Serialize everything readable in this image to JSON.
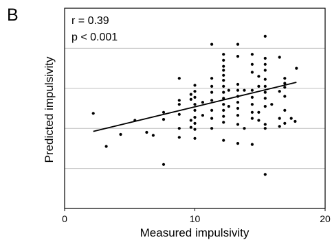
{
  "chart_data": {
    "type": "scatter",
    "panel_label": "B",
    "title": "",
    "xlabel": "Measured impulsivity",
    "ylabel": "Predicted impulsivity",
    "xlim": [
      0,
      20
    ],
    "ylim": [
      0,
      1
    ],
    "x_ticks": [
      0,
      10,
      20
    ],
    "y_ticks_labeled": false,
    "grid": "horizontal",
    "annotations": [
      "r = 0.39",
      "p < 0.001"
    ],
    "colors": {
      "points": "#000000",
      "line": "#000000",
      "grid": "#bdbdbd",
      "frame": "#000000"
    },
    "points": [
      [
        2.2,
        0.475
      ],
      [
        3.2,
        0.31
      ],
      [
        4.3,
        0.37
      ],
      [
        5.4,
        0.44
      ],
      [
        6.3,
        0.38
      ],
      [
        6.8,
        0.365
      ],
      [
        7.6,
        0.22
      ],
      [
        7.6,
        0.48
      ],
      [
        7.6,
        0.445
      ],
      [
        8.8,
        0.65
      ],
      [
        8.8,
        0.54
      ],
      [
        8.8,
        0.52
      ],
      [
        8.8,
        0.47
      ],
      [
        8.8,
        0.4
      ],
      [
        8.8,
        0.355
      ],
      [
        9.7,
        0.57
      ],
      [
        9.7,
        0.44
      ],
      [
        9.7,
        0.405
      ],
      [
        9.7,
        0.545
      ],
      [
        10.0,
        0.615
      ],
      [
        10.0,
        0.585
      ],
      [
        10.0,
        0.555
      ],
      [
        10.0,
        0.52
      ],
      [
        10.0,
        0.49
      ],
      [
        10.0,
        0.455
      ],
      [
        10.0,
        0.425
      ],
      [
        10.0,
        0.395
      ],
      [
        10.0,
        0.35
      ],
      [
        10.6,
        0.53
      ],
      [
        10.6,
        0.465
      ],
      [
        11.3,
        0.82
      ],
      [
        11.3,
        0.65
      ],
      [
        11.3,
        0.61
      ],
      [
        11.3,
        0.58
      ],
      [
        11.3,
        0.54
      ],
      [
        11.3,
        0.49
      ],
      [
        11.3,
        0.45
      ],
      [
        11.3,
        0.4
      ],
      [
        12.2,
        0.77
      ],
      [
        12.2,
        0.74
      ],
      [
        12.2,
        0.71
      ],
      [
        12.2,
        0.69
      ],
      [
        12.2,
        0.665
      ],
      [
        12.2,
        0.64
      ],
      [
        12.2,
        0.61
      ],
      [
        12.2,
        0.58
      ],
      [
        12.2,
        0.55
      ],
      [
        12.2,
        0.52
      ],
      [
        12.2,
        0.49
      ],
      [
        12.2,
        0.46
      ],
      [
        12.2,
        0.43
      ],
      [
        12.2,
        0.34
      ],
      [
        12.6,
        0.59
      ],
      [
        12.6,
        0.51
      ],
      [
        13.3,
        0.82
      ],
      [
        13.3,
        0.76
      ],
      [
        13.3,
        0.62
      ],
      [
        13.3,
        0.59
      ],
      [
        13.3,
        0.56
      ],
      [
        13.3,
        0.53
      ],
      [
        13.3,
        0.5
      ],
      [
        13.3,
        0.465
      ],
      [
        13.3,
        0.42
      ],
      [
        13.3,
        0.325
      ],
      [
        13.8,
        0.59
      ],
      [
        13.8,
        0.4
      ],
      [
        14.4,
        0.77
      ],
      [
        14.4,
        0.72
      ],
      [
        14.4,
        0.68
      ],
      [
        14.4,
        0.59
      ],
      [
        14.4,
        0.555
      ],
      [
        14.4,
        0.52
      ],
      [
        14.4,
        0.48
      ],
      [
        14.4,
        0.45
      ],
      [
        14.4,
        0.32
      ],
      [
        14.9,
        0.66
      ],
      [
        14.9,
        0.61
      ],
      [
        14.9,
        0.48
      ],
      [
        14.9,
        0.44
      ],
      [
        15.4,
        0.86
      ],
      [
        15.4,
        0.75
      ],
      [
        15.4,
        0.72
      ],
      [
        15.4,
        0.69
      ],
      [
        15.4,
        0.645
      ],
      [
        15.4,
        0.61
      ],
      [
        15.4,
        0.58
      ],
      [
        15.4,
        0.55
      ],
      [
        15.4,
        0.51
      ],
      [
        15.4,
        0.42
      ],
      [
        15.4,
        0.4
      ],
      [
        15.4,
        0.17
      ],
      [
        15.9,
        0.52
      ],
      [
        16.5,
        0.755
      ],
      [
        16.5,
        0.585
      ],
      [
        16.5,
        0.45
      ],
      [
        16.5,
        0.41
      ],
      [
        16.9,
        0.65
      ],
      [
        16.9,
        0.625
      ],
      [
        16.9,
        0.605
      ],
      [
        16.9,
        0.56
      ],
      [
        16.9,
        0.49
      ],
      [
        16.9,
        0.425
      ],
      [
        17.4,
        0.45
      ],
      [
        17.7,
        0.435
      ],
      [
        17.8,
        0.7
      ]
    ],
    "fit_line": {
      "x": [
        2.2,
        17.8
      ],
      "y": [
        0.385,
        0.63
      ]
    }
  }
}
